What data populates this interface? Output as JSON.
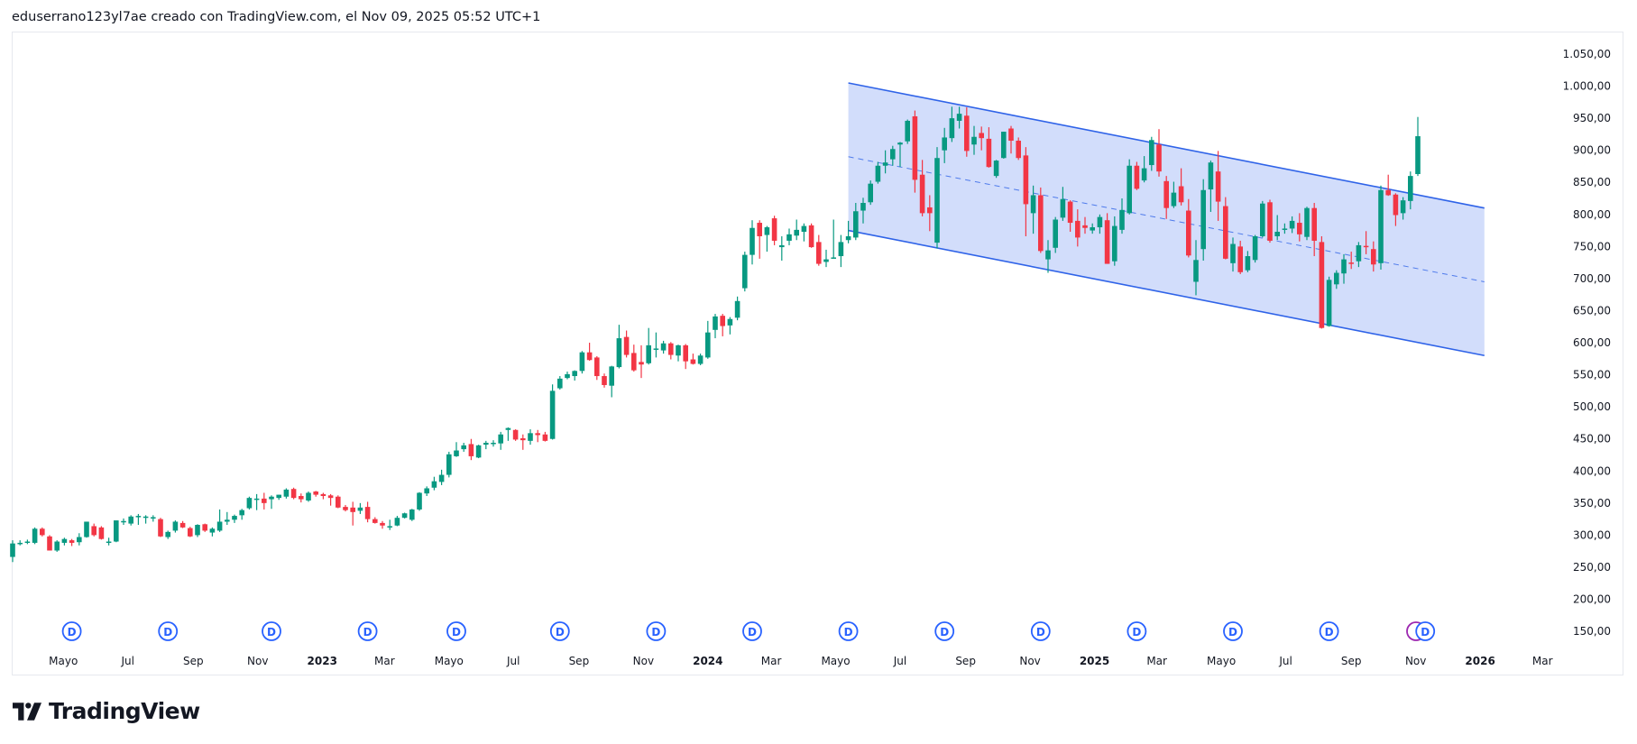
{
  "header": {
    "caption": "eduserrano123yl7ae creado con TradingView.com, el Nov 09, 2025 05:52 UTC+1"
  },
  "brand": {
    "logo_text": "TradingView"
  },
  "chart_data": {
    "type": "candlestick",
    "start_week": "2022-03-14",
    "colors": {
      "up": "#089981",
      "down": "#f23645",
      "channel_line": "#2f63e8",
      "channel_fill": "#d2ddfb",
      "dividend": "#2962ff",
      "earnings": "#9c27b0"
    },
    "y_axis": {
      "range": [
        130,
        1070
      ],
      "ticks": [
        "1.050,00",
        "1.000,00",
        "950,00",
        "900,00",
        "850,00",
        "800,00",
        "750,00",
        "700,00",
        "650,00",
        "600,00",
        "550,00",
        "500,00",
        "450,00",
        "400,00",
        "350,00",
        "300,00",
        "250,00",
        "200,00",
        "150,00"
      ],
      "tick_values": [
        1050,
        1000,
        950,
        900,
        850,
        800,
        750,
        700,
        650,
        600,
        550,
        500,
        450,
        400,
        350,
        300,
        250,
        200,
        150
      ]
    },
    "x_axis": {
      "ticks": [
        {
          "label": "Mayo",
          "date": "2022-05-01"
        },
        {
          "label": "Jul",
          "date": "2022-07-01"
        },
        {
          "label": "Sep",
          "date": "2022-09-01"
        },
        {
          "label": "Nov",
          "date": "2022-11-01"
        },
        {
          "label": "2023",
          "date": "2023-01-01",
          "bold": true
        },
        {
          "label": "Mar",
          "date": "2023-03-01"
        },
        {
          "label": "Mayo",
          "date": "2023-05-01"
        },
        {
          "label": "Jul",
          "date": "2023-07-01"
        },
        {
          "label": "Sep",
          "date": "2023-09-01"
        },
        {
          "label": "Nov",
          "date": "2023-11-01"
        },
        {
          "label": "2024",
          "date": "2024-01-01",
          "bold": true
        },
        {
          "label": "Mar",
          "date": "2024-03-01"
        },
        {
          "label": "Mayo",
          "date": "2024-05-01"
        },
        {
          "label": "Jul",
          "date": "2024-07-01"
        },
        {
          "label": "Sep",
          "date": "2024-09-01"
        },
        {
          "label": "Nov",
          "date": "2024-11-01"
        },
        {
          "label": "2025",
          "date": "2025-01-01",
          "bold": true
        },
        {
          "label": "Mar",
          "date": "2025-03-01"
        },
        {
          "label": "Mayo",
          "date": "2025-05-01"
        },
        {
          "label": "Jul",
          "date": "2025-07-01"
        },
        {
          "label": "Sep",
          "date": "2025-09-01"
        },
        {
          "label": "Nov",
          "date": "2025-11-01"
        },
        {
          "label": "2026",
          "date": "2026-01-01",
          "bold": true
        },
        {
          "label": "Mar",
          "date": "2026-03-01"
        }
      ]
    },
    "dividend_marker_label": "D",
    "dividends": [
      "2022-05-09",
      "2022-08-08",
      "2022-11-14",
      "2023-02-13",
      "2023-05-08",
      "2023-08-14",
      "2023-11-13",
      "2024-02-12",
      "2024-05-13",
      "2024-08-12",
      "2024-11-11",
      "2025-02-10",
      "2025-05-12",
      "2025-08-11",
      "2025-11-10"
    ],
    "earnings": [
      "2025-11-03"
    ],
    "channel": {
      "start": "2024-05-13",
      "end": "2026-01-05",
      "upper": [
        1005,
        810
      ],
      "lower": [
        775,
        580
      ],
      "middle": [
        890,
        695
      ]
    },
    "ohlc": [
      [
        266,
        292,
        258,
        287
      ],
      [
        288,
        292,
        284,
        288
      ],
      [
        290,
        293,
        286,
        290
      ],
      [
        288,
        312,
        286,
        310
      ],
      [
        310,
        312,
        298,
        300
      ],
      [
        298,
        300,
        276,
        276
      ],
      [
        276,
        292,
        274,
        290
      ],
      [
        288,
        296,
        284,
        294
      ],
      [
        292,
        294,
        283,
        288
      ],
      [
        289,
        303,
        284,
        297
      ],
      [
        297,
        321,
        296,
        321
      ],
      [
        314,
        318,
        298,
        300
      ],
      [
        312,
        314,
        293,
        294
      ],
      [
        290,
        296,
        284,
        290
      ],
      [
        290,
        323,
        289,
        323
      ],
      [
        322,
        326,
        316,
        322
      ],
      [
        318,
        331,
        315,
        329
      ],
      [
        330,
        333,
        316,
        330
      ],
      [
        329,
        331,
        318,
        329
      ],
      [
        328,
        331,
        321,
        328
      ],
      [
        325,
        327,
        297,
        298
      ],
      [
        297,
        307,
        294,
        305
      ],
      [
        307,
        323,
        304,
        321
      ],
      [
        319,
        322,
        311,
        312
      ],
      [
        311,
        313,
        297,
        298
      ],
      [
        300,
        317,
        297,
        316
      ],
      [
        317,
        318,
        305,
        307
      ],
      [
        304,
        312,
        298,
        310
      ],
      [
        307,
        340,
        305,
        321
      ],
      [
        321,
        336,
        316,
        324
      ],
      [
        324,
        332,
        319,
        330
      ],
      [
        331,
        341,
        324,
        339
      ],
      [
        342,
        360,
        340,
        358
      ],
      [
        357,
        364,
        339,
        357
      ],
      [
        357,
        366,
        340,
        350
      ],
      [
        356,
        362,
        341,
        360
      ],
      [
        358,
        363,
        355,
        363
      ],
      [
        360,
        373,
        357,
        371
      ],
      [
        372,
        374,
        356,
        358
      ],
      [
        361,
        365,
        351,
        356
      ],
      [
        354,
        368,
        352,
        366
      ],
      [
        368,
        369,
        360,
        363
      ],
      [
        364,
        366,
        356,
        361
      ],
      [
        362,
        364,
        346,
        358
      ],
      [
        360,
        362,
        342,
        343
      ],
      [
        344,
        347,
        337,
        339
      ],
      [
        343,
        352,
        315,
        336
      ],
      [
        338,
        350,
        333,
        343
      ],
      [
        344,
        352,
        320,
        325
      ],
      [
        325,
        328,
        318,
        319
      ],
      [
        319,
        322,
        310,
        315
      ],
      [
        314,
        324,
        308,
        314
      ],
      [
        315,
        330,
        314,
        327
      ],
      [
        327,
        335,
        326,
        334
      ],
      [
        324,
        341,
        322,
        340
      ],
      [
        340,
        367,
        338,
        366
      ],
      [
        365,
        376,
        361,
        373
      ],
      [
        374,
        391,
        370,
        384
      ],
      [
        383,
        402,
        378,
        394
      ],
      [
        394,
        430,
        390,
        426
      ],
      [
        423,
        445,
        422,
        432
      ],
      [
        434,
        444,
        430,
        440
      ],
      [
        442,
        450,
        417,
        423
      ],
      [
        421,
        441,
        420,
        440
      ],
      [
        441,
        447,
        434,
        444
      ],
      [
        444,
        448,
        438,
        444
      ],
      [
        443,
        461,
        433,
        457
      ],
      [
        464,
        468,
        447,
        467
      ],
      [
        464,
        465,
        447,
        449
      ],
      [
        451,
        457,
        433,
        448
      ],
      [
        447,
        465,
        441,
        459
      ],
      [
        459,
        464,
        445,
        456
      ],
      [
        457,
        461,
        446,
        447
      ],
      [
        450,
        535,
        449,
        525
      ],
      [
        529,
        548,
        527,
        544
      ],
      [
        545,
        555,
        543,
        551
      ],
      [
        548,
        557,
        541,
        556
      ],
      [
        556,
        587,
        552,
        585
      ],
      [
        585,
        600,
        572,
        573
      ],
      [
        577,
        579,
        542,
        548
      ],
      [
        548,
        552,
        530,
        534
      ],
      [
        533,
        564,
        515,
        563
      ],
      [
        562,
        628,
        560,
        607
      ],
      [
        609,
        619,
        577,
        581
      ],
      [
        584,
        597,
        555,
        557
      ],
      [
        570,
        596,
        545,
        566
      ],
      [
        568,
        623,
        566,
        596
      ],
      [
        591,
        616,
        577,
        591
      ],
      [
        588,
        603,
        583,
        599
      ],
      [
        599,
        601,
        574,
        581
      ],
      [
        580,
        597,
        571,
        596
      ],
      [
        596,
        598,
        559,
        571
      ],
      [
        574,
        583,
        566,
        567
      ],
      [
        567,
        583,
        565,
        580
      ],
      [
        577,
        634,
        575,
        616
      ],
      [
        620,
        645,
        607,
        641
      ],
      [
        642,
        645,
        610,
        626
      ],
      [
        627,
        640,
        613,
        637
      ],
      [
        639,
        672,
        635,
        665
      ],
      [
        685,
        742,
        680,
        737
      ],
      [
        737,
        791,
        722,
        779
      ],
      [
        787,
        791,
        731,
        766
      ],
      [
        768,
        782,
        742,
        780
      ],
      [
        794,
        798,
        752,
        759
      ],
      [
        749,
        766,
        728,
        752
      ],
      [
        759,
        778,
        752,
        769
      ],
      [
        767,
        792,
        760,
        776
      ],
      [
        773,
        786,
        758,
        782
      ],
      [
        783,
        786,
        748,
        749
      ],
      [
        757,
        768,
        720,
        723
      ],
      [
        726,
        745,
        718,
        730
      ],
      [
        733,
        792,
        732,
        733
      ],
      [
        735,
        768,
        718,
        757
      ],
      [
        760,
        790,
        755,
        766
      ],
      [
        764,
        818,
        760,
        805
      ],
      [
        806,
        826,
        786,
        818
      ],
      [
        819,
        853,
        815,
        848
      ],
      [
        851,
        882,
        848,
        876
      ],
      [
        876,
        900,
        864,
        881
      ],
      [
        886,
        907,
        876,
        902
      ],
      [
        909,
        913,
        874,
        912
      ],
      [
        914,
        948,
        910,
        946
      ],
      [
        953,
        962,
        834,
        854
      ],
      [
        862,
        885,
        797,
        802
      ],
      [
        811,
        830,
        774,
        802
      ],
      [
        756,
        905,
        747,
        888
      ],
      [
        900,
        935,
        880,
        920
      ],
      [
        919,
        968,
        913,
        950
      ],
      [
        946,
        968,
        934,
        957
      ],
      [
        954,
        967,
        890,
        899
      ],
      [
        909,
        938,
        893,
        921
      ],
      [
        927,
        937,
        900,
        919
      ],
      [
        918,
        936,
        873,
        874
      ],
      [
        860,
        885,
        857,
        884
      ],
      [
        888,
        929,
        887,
        929
      ],
      [
        934,
        938,
        895,
        915
      ],
      [
        915,
        920,
        885,
        888
      ],
      [
        892,
        905,
        766,
        816
      ],
      [
        802,
        845,
        770,
        830
      ],
      [
        830,
        842,
        740,
        743
      ],
      [
        730,
        760,
        709,
        744
      ],
      [
        748,
        796,
        740,
        792
      ],
      [
        795,
        843,
        790,
        824
      ],
      [
        820,
        822,
        773,
        787
      ],
      [
        790,
        808,
        750,
        764
      ],
      [
        783,
        796,
        770,
        779
      ],
      [
        775,
        786,
        770,
        780
      ],
      [
        780,
        800,
        770,
        796
      ],
      [
        791,
        802,
        723,
        723
      ],
      [
        727,
        797,
        720,
        782
      ],
      [
        776,
        825,
        770,
        807
      ],
      [
        802,
        886,
        800,
        876
      ],
      [
        876,
        882,
        838,
        840
      ],
      [
        853,
        891,
        850,
        872
      ],
      [
        877,
        921,
        868,
        916
      ],
      [
        909,
        933,
        859,
        867
      ],
      [
        852,
        860,
        793,
        810
      ],
      [
        813,
        851,
        810,
        834
      ],
      [
        844,
        872,
        814,
        819
      ],
      [
        806,
        824,
        733,
        736
      ],
      [
        695,
        760,
        674,
        729
      ],
      [
        746,
        855,
        728,
        838
      ],
      [
        839,
        884,
        804,
        881
      ],
      [
        867,
        899,
        790,
        820
      ],
      [
        813,
        827,
        730,
        731
      ],
      [
        724,
        764,
        711,
        754
      ],
      [
        750,
        759,
        707,
        710
      ],
      [
        713,
        743,
        710,
        735
      ],
      [
        729,
        768,
        725,
        766
      ],
      [
        766,
        821,
        764,
        817
      ],
      [
        819,
        823,
        756,
        759
      ],
      [
        766,
        799,
        760,
        773
      ],
      [
        776,
        786,
        770,
        778
      ],
      [
        778,
        797,
        771,
        790
      ],
      [
        787,
        802,
        758,
        769
      ],
      [
        765,
        812,
        760,
        810
      ],
      [
        810,
        818,
        735,
        759
      ],
      [
        757,
        766,
        622,
        623
      ],
      [
        626,
        703,
        625,
        698
      ],
      [
        691,
        713,
        684,
        709
      ],
      [
        708,
        738,
        692,
        730
      ],
      [
        725,
        742,
        715,
        724
      ],
      [
        727,
        757,
        718,
        752
      ],
      [
        751,
        774,
        738,
        750
      ],
      [
        746,
        758,
        711,
        722
      ],
      [
        724,
        845,
        714,
        838
      ],
      [
        838,
        862,
        829,
        830
      ],
      [
        831,
        833,
        782,
        799
      ],
      [
        802,
        827,
        792,
        822
      ],
      [
        821,
        867,
        808,
        860
      ],
      [
        863,
        952,
        860,
        922
      ]
    ]
  }
}
